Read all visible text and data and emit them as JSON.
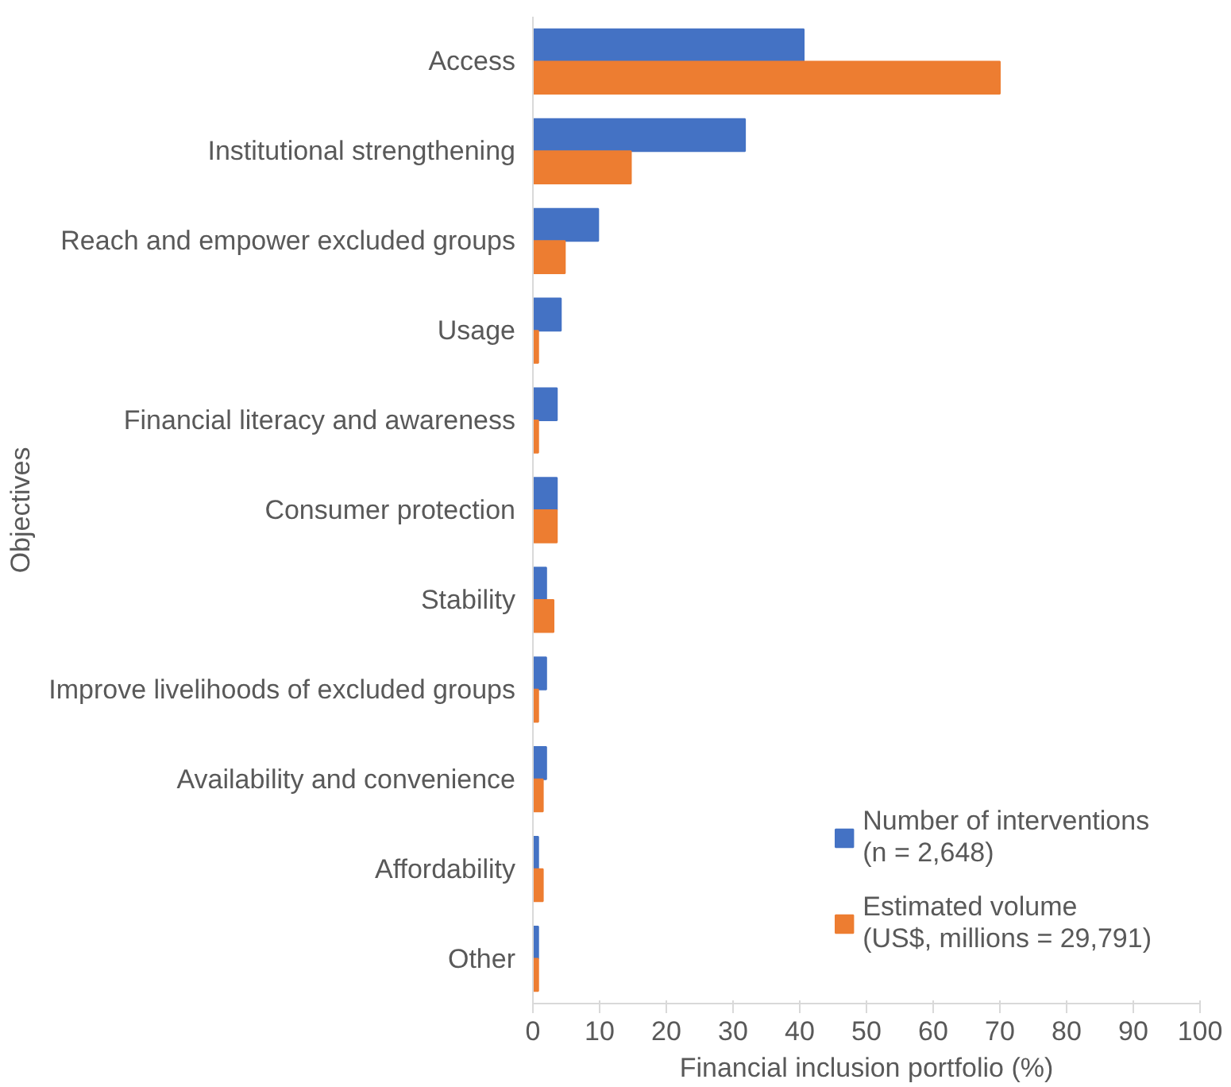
{
  "chart_data": {
    "type": "bar",
    "orientation": "horizontal",
    "xlabel": "Financial inclusion portfolio (%)",
    "ylabel": "Objectives",
    "categories": [
      "Access",
      "Institutional strengthening",
      "Reach and empower excluded groups",
      "Usage",
      "Financial literacy and awareness",
      "Consumer protection",
      "Stability",
      "Improve livelihoods of excluded groups",
      "Availability and convenience",
      "Affordability",
      "Other"
    ],
    "series": [
      {
        "name": "Number of interventions\n(n = 2,648)",
        "color": "#4472c4",
        "values": [
          40.6,
          31.8,
          9.8,
          4.2,
          3.6,
          3.6,
          2.0,
          2.0,
          2.0,
          0.8,
          0.8
        ]
      },
      {
        "name": "Estimated volume\n(US$, millions = 29,791)",
        "color": "#ed7d31",
        "values": [
          70,
          14.7,
          4.8,
          0.8,
          0.8,
          3.6,
          3.1,
          0.8,
          1.5,
          1.5,
          0.8
        ]
      }
    ],
    "xlim": [
      0,
      100
    ],
    "xticks": [
      0,
      10,
      20,
      30,
      40,
      50,
      60,
      70,
      80,
      90,
      100
    ],
    "grid": false,
    "legend": "bottom right"
  }
}
